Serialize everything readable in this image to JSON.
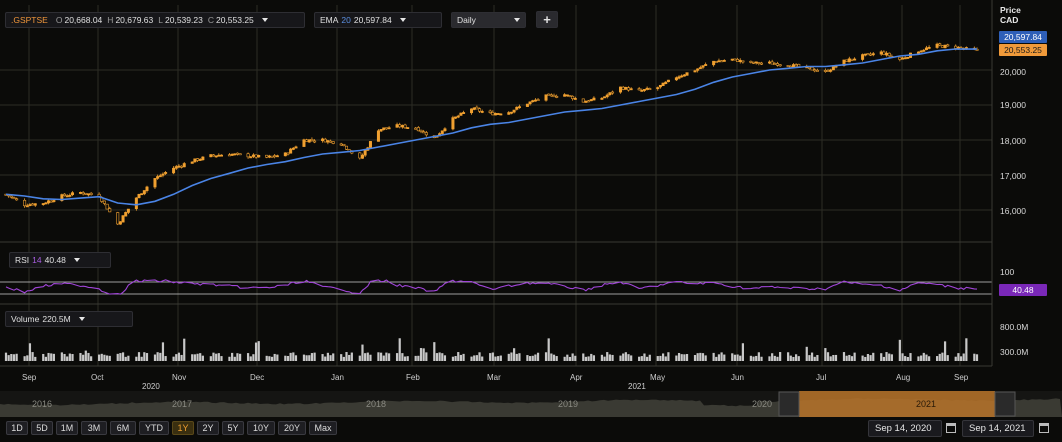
{
  "price_header": {
    "symbol": ".GSPTSE",
    "o_label": "O",
    "o_value": "20,668.04",
    "h_label": "H",
    "h_value": "20,679.63",
    "l_label": "L",
    "l_value": "20,539.23",
    "c_label": "C",
    "c_value": "20,553.25"
  },
  "ema_header": {
    "label": "EMA",
    "period": "20",
    "value": "20,597.84"
  },
  "interval": "Daily",
  "add_label": "+",
  "price_axis": {
    "title": "Price",
    "currency": "CAD",
    "ticks": [
      "20,000",
      "19,000",
      "18,000",
      "17,000",
      "16,000"
    ]
  },
  "tags": {
    "ema": "20,597.84",
    "close": "20,553.25",
    "rsi": "40.48"
  },
  "rsi_header": {
    "label": "RSI",
    "period": "14",
    "value": "40.48"
  },
  "rsi_axis": {
    "ticks": [
      "100"
    ]
  },
  "volume_header": {
    "label": "Volume",
    "value": "220.5M"
  },
  "volume_axis": {
    "ticks": [
      "800.0M",
      "300.0M"
    ]
  },
  "x_axis": {
    "months": [
      "Sep",
      "Oct",
      "Nov",
      "Dec",
      "Jan",
      "Feb",
      "Mar",
      "Apr",
      "May",
      "Jun",
      "Jul",
      "Aug",
      "Sep"
    ],
    "years": [
      "2020",
      "2021"
    ]
  },
  "navigator": {
    "years": [
      "2016",
      "2017",
      "2018",
      "2019",
      "2020",
      "2021"
    ]
  },
  "ranges": [
    "1D",
    "5D",
    "1M",
    "3M",
    "6M",
    "YTD",
    "1Y",
    "2Y",
    "5Y",
    "10Y",
    "20Y",
    "Max"
  ],
  "active_range": "1Y",
  "date_from": "Sep 14, 2020",
  "date_to": "Sep 14, 2021",
  "colors": {
    "background": "#0b0b09",
    "grid": "#2c2c25",
    "ema": "#4a84e6",
    "candle": "#f0a030",
    "rsi": "#a045d8",
    "volume": "#c8c8c8",
    "navigator_highlight": "#b8742a"
  },
  "chart_data": {
    "type": "candlestick",
    "instrument": ".GSPTSE",
    "interval": "Daily",
    "price_range": [
      15250,
      21150
    ],
    "weekly": [
      {
        "date": "2020-09-14",
        "close": 16450
      },
      {
        "date": "2020-09-21",
        "close": 16150
      },
      {
        "date": "2020-09-28",
        "close": 16200
      },
      {
        "date": "2020-10-05",
        "close": 16400
      },
      {
        "date": "2020-10-12",
        "close": 16500
      },
      {
        "date": "2020-10-19",
        "close": 16400
      },
      {
        "date": "2020-10-26",
        "close": 15600
      },
      {
        "date": "2020-11-02",
        "close": 16350
      },
      {
        "date": "2020-11-09",
        "close": 16900
      },
      {
        "date": "2020-11-16",
        "close": 17200
      },
      {
        "date": "2020-11-23",
        "close": 17400
      },
      {
        "date": "2020-11-30",
        "close": 17550
      },
      {
        "date": "2020-12-07",
        "close": 17600
      },
      {
        "date": "2020-12-14",
        "close": 17550
      },
      {
        "date": "2020-12-21",
        "close": 17500
      },
      {
        "date": "2020-12-28",
        "close": 17600
      },
      {
        "date": "2021-01-04",
        "close": 18000
      },
      {
        "date": "2021-01-11",
        "close": 18000
      },
      {
        "date": "2021-01-18",
        "close": 17900
      },
      {
        "date": "2021-01-25",
        "close": 17450
      },
      {
        "date": "2021-02-01",
        "close": 18300
      },
      {
        "date": "2021-02-08",
        "close": 18400
      },
      {
        "date": "2021-02-15",
        "close": 18350
      },
      {
        "date": "2021-02-22",
        "close": 18050
      },
      {
        "date": "2021-03-01",
        "close": 18600
      },
      {
        "date": "2021-03-08",
        "close": 18900
      },
      {
        "date": "2021-03-15",
        "close": 18750
      },
      {
        "date": "2021-03-22",
        "close": 18800
      },
      {
        "date": "2021-03-29",
        "close": 19050
      },
      {
        "date": "2021-04-05",
        "close": 19250
      },
      {
        "date": "2021-04-12",
        "close": 19300
      },
      {
        "date": "2021-04-19",
        "close": 19100
      },
      {
        "date": "2021-04-26",
        "close": 19200
      },
      {
        "date": "2021-05-03",
        "close": 19500
      },
      {
        "date": "2021-05-10",
        "close": 19400
      },
      {
        "date": "2021-05-17",
        "close": 19500
      },
      {
        "date": "2021-05-24",
        "close": 19800
      },
      {
        "date": "2021-05-31",
        "close": 20000
      },
      {
        "date": "2021-06-07",
        "close": 20250
      },
      {
        "date": "2021-06-14",
        "close": 20300
      },
      {
        "date": "2021-06-21",
        "close": 20200
      },
      {
        "date": "2021-06-28",
        "close": 20200
      },
      {
        "date": "2021-07-05",
        "close": 20150
      },
      {
        "date": "2021-07-12",
        "close": 20050
      },
      {
        "date": "2021-07-19",
        "close": 19950
      },
      {
        "date": "2021-07-26",
        "close": 20250
      },
      {
        "date": "2021-08-02",
        "close": 20400
      },
      {
        "date": "2021-08-09",
        "close": 20500
      },
      {
        "date": "2021-08-16",
        "close": 20300
      },
      {
        "date": "2021-08-23",
        "close": 20550
      },
      {
        "date": "2021-08-30",
        "close": 20700
      },
      {
        "date": "2021-09-06",
        "close": 20650
      },
      {
        "date": "2021-09-14",
        "close": 20553.25
      }
    ],
    "ema": {
      "period": 20,
      "weekly": [
        16450,
        16400,
        16320,
        16300,
        16340,
        16380,
        16200,
        16150,
        16250,
        16450,
        16700,
        16900,
        17050,
        17200,
        17300,
        17380,
        17500,
        17600,
        17650,
        17700,
        17800,
        17900,
        18000,
        18100,
        18200,
        18350,
        18450,
        18500,
        18600,
        18700,
        18800,
        18850,
        18900,
        19000,
        19100,
        19200,
        19300,
        19450,
        19650,
        19800,
        19900,
        20000,
        20050,
        20100,
        20100,
        20150,
        20200,
        20300,
        20400,
        20450,
        20550,
        20600,
        20597.84
      ]
    },
    "rsi": {
      "period": 14,
      "last": 40.48
    },
    "volume": {
      "last": "220.5M"
    }
  }
}
